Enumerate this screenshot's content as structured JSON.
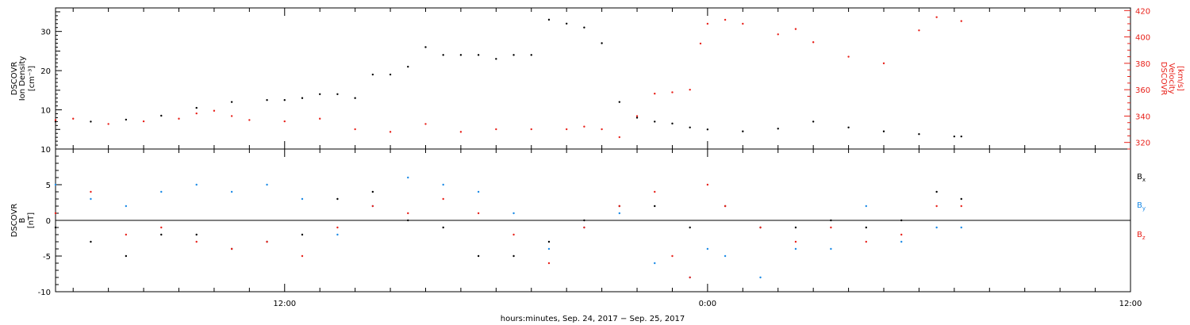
{
  "chart_data": [
    {
      "type": "scatter",
      "panel": "top",
      "ylabel": [
        "DSCOVR",
        "Ion Density",
        "[cm⁻³]"
      ],
      "y2label": [
        "DSCOVR",
        "Velocity",
        "[km/s]"
      ],
      "ylim": [
        0,
        36
      ],
      "y2lim": [
        315,
        422
      ],
      "yticks": [
        10,
        20,
        30
      ],
      "y2ticks": [
        320,
        340,
        360,
        380,
        400,
        420
      ],
      "x_hours_range": [
        5.5,
        36.0
      ],
      "series": [
        {
          "axis": "left",
          "color": "#000000",
          "x": [
            5.5,
            6.5,
            7.5,
            8.5,
            9.5,
            10.5,
            11.5,
            12.0,
            12.5,
            13.0,
            13.5,
            14.0,
            14.5,
            15.0,
            15.5,
            16.0,
            16.5,
            17.0,
            17.5,
            18.0,
            18.5,
            19.0,
            19.5,
            20.0,
            20.5,
            21.0,
            21.5,
            22.0,
            22.5,
            23.0,
            23.5,
            24.0,
            25.0,
            26.0,
            27.0,
            28.0,
            29.0,
            30.0,
            31.0,
            31.2
          ],
          "y": [
            7,
            7,
            7.5,
            8.5,
            10.5,
            12,
            12.5,
            12.5,
            13,
            14,
            14,
            13,
            19,
            19,
            21,
            26,
            24,
            24,
            24,
            23,
            24,
            24,
            33,
            32,
            31,
            27,
            12,
            8,
            7,
            6.5,
            5.5,
            5,
            4.5,
            5.2,
            7,
            5.5,
            4.5,
            3.8,
            3.2,
            3.2
          ]
        },
        {
          "axis": "right",
          "color": "#e8211a",
          "x": [
            5.5,
            6.0,
            7.0,
            8.0,
            9.0,
            9.5,
            10.0,
            10.5,
            11.0,
            12.0,
            13.0,
            14.0,
            15.0,
            16.0,
            17.0,
            18.0,
            19.0,
            20.0,
            20.5,
            21.0,
            21.5,
            22.0,
            22.5,
            23.0,
            23.5,
            23.8,
            24.0,
            24.5,
            25.0,
            26.0,
            26.5,
            27.0,
            28.0,
            29.0,
            30.0,
            30.5,
            31.2
          ],
          "y": [
            337,
            338,
            334,
            336,
            338,
            342,
            344,
            340,
            337,
            336,
            338,
            330,
            328,
            334,
            328,
            330,
            330,
            330,
            332,
            330,
            324,
            340,
            357,
            358,
            360,
            395,
            410,
            413,
            410,
            402,
            406,
            396,
            385,
            380,
            405,
            415,
            412
          ]
        }
      ]
    },
    {
      "type": "scatter",
      "panel": "bottom",
      "ylabel": [
        "DSCOVR",
        "B",
        "[nT]"
      ],
      "ylim": [
        -10,
        10
      ],
      "yticks": [
        -10,
        -5,
        0,
        5,
        10
      ],
      "zero_line": true,
      "x_hours_range": [
        5.5,
        36.0
      ],
      "xticks": [
        "12:00",
        "0:00",
        "12:00"
      ],
      "xticks_hours": [
        12,
        24,
        36
      ],
      "xlabel": "hours:minutes, Sep. 24, 2017 − Sep. 25, 2017",
      "series": [
        {
          "name": "Bx",
          "color": "#000000",
          "x": [
            5.5,
            6.5,
            7.5,
            8.5,
            9.5,
            10.5,
            11.5,
            12.5,
            13.5,
            14.5,
            15.5,
            16.5,
            17.5,
            18.5,
            19.5,
            20.5,
            21.5,
            22.5,
            23.5,
            24.5,
            25.5,
            26.5,
            27.5,
            28.5,
            29.5,
            30.5,
            31.2
          ],
          "y": [
            -1,
            -3,
            -5,
            -2,
            -2,
            -4,
            -3,
            -2,
            3,
            4,
            0,
            -1,
            -5,
            -5,
            -3,
            0,
            2,
            2,
            -1,
            2,
            -1,
            -1,
            0,
            -1,
            0,
            4,
            3
          ]
        },
        {
          "name": "By",
          "color": "#1a8ae6",
          "x": [
            5.5,
            6.5,
            7.5,
            8.5,
            9.5,
            10.5,
            11.5,
            12.5,
            13.5,
            14.5,
            15.5,
            16.5,
            17.5,
            18.5,
            19.5,
            20.5,
            21.5,
            22.5,
            23.5,
            24.0,
            24.5,
            25.5,
            26.5,
            27.5,
            28.5,
            29.5,
            30.5,
            31.2
          ],
          "y": [
            5,
            3,
            2,
            4,
            5,
            4,
            5,
            3,
            -2,
            2,
            6,
            5,
            4,
            1,
            -4,
            -1,
            1,
            -6,
            -8,
            -4,
            -5,
            -8,
            -4,
            -4,
            2,
            -3,
            -1,
            -1
          ]
        },
        {
          "name": "Bz",
          "color": "#e8211a",
          "x": [
            5.5,
            6.5,
            7.5,
            8.5,
            9.5,
            10.5,
            11.5,
            12.5,
            13.5,
            14.5,
            15.5,
            16.5,
            17.5,
            18.5,
            19.5,
            20.5,
            21.5,
            22.5,
            23.0,
            23.5,
            24.0,
            24.5,
            25.5,
            26.5,
            27.5,
            28.5,
            29.5,
            30.5,
            31.2
          ],
          "y": [
            1,
            4,
            -2,
            -1,
            -3,
            -4,
            -3,
            -5,
            -1,
            2,
            1,
            3,
            1,
            -2,
            -6,
            -1,
            2,
            4,
            -5,
            -8,
            5,
            2,
            -1,
            -3,
            -1,
            -3,
            -2,
            2,
            2
          ]
        }
      ]
    }
  ],
  "legend": {
    "bx": {
      "base": "B",
      "sub": "x",
      "color": "#000000"
    },
    "by": {
      "base": "B",
      "sub": "y",
      "color": "#1a8ae6"
    },
    "bz": {
      "base": "B",
      "sub": "z",
      "color": "#e8211a"
    }
  }
}
